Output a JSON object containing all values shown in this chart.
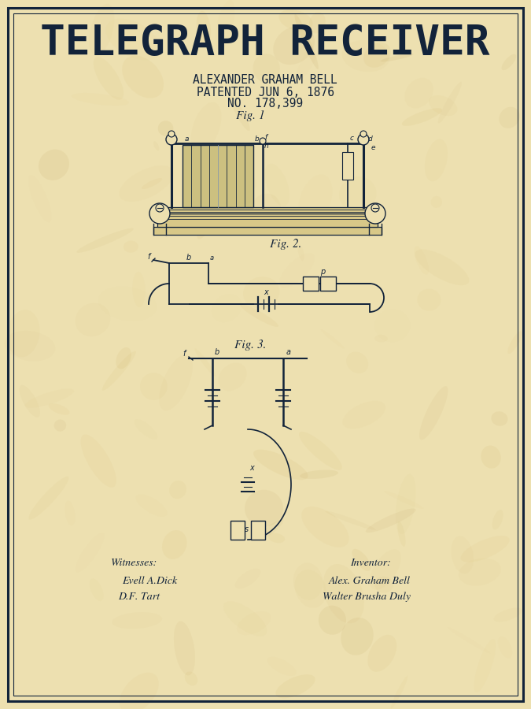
{
  "title": "TELEGRAPH RECEIVER",
  "subtitle_line1": "ALEXANDER GRAHAM BELL",
  "subtitle_line2": "PATENTED JUN 6, 1876",
  "subtitle_line3": "NO. 178,399",
  "fig1_label": "Fig. 1",
  "fig2_label": "Fig. 2.",
  "fig3_label": "Fig. 3.",
  "witnesses_label": "Witnesses:",
  "witness1": "Evell A.Dick",
  "witness2": "D.F. Tart",
  "inventor_label": "Inventor:",
  "inventor1": "Alex. Graham Bell",
  "inventor2": "Walter Brusha Duly",
  "bg_color_inner": "#ede0b0",
  "bg_color_outer": "#d4b870",
  "ink_color": "#12233a",
  "title_fontsize": 38,
  "subtitle_fontsize": 10.5,
  "fig_label_fontsize": 11,
  "sig_fontsize": 10
}
